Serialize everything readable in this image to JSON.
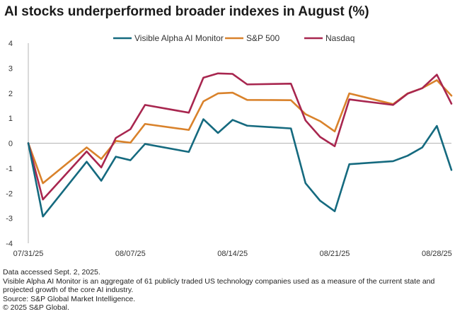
{
  "chart_data": {
    "type": "line",
    "title": "AI stocks underperformed broader indexes in August (%)",
    "xlabel": "",
    "ylabel": "",
    "ylim": [
      -4,
      4
    ],
    "yticks": [
      4,
      3,
      2,
      1,
      0,
      -1,
      -2,
      -3,
      -4
    ],
    "xticks": [
      {
        "label": "07/31/25",
        "x": 0
      },
      {
        "label": "08/07/25",
        "x": 7
      },
      {
        "label": "08/14/25",
        "x": 14
      },
      {
        "label": "08/21/25",
        "x": 21
      },
      {
        "label": "08/28/25",
        "x": 28
      }
    ],
    "x": [
      0,
      1,
      4,
      5,
      6,
      7,
      8,
      11,
      12,
      13,
      14,
      15,
      18,
      19,
      20,
      21,
      22,
      25,
      26,
      27,
      28,
      29
    ],
    "series": [
      {
        "name": "Visible Alpha AI Monitor",
        "color": "#156a7f",
        "values": [
          0,
          -2.93,
          -0.74,
          -1.5,
          -0.54,
          -0.68,
          -0.03,
          -0.35,
          0.96,
          0.41,
          0.93,
          0.7,
          0.59,
          -1.6,
          -2.3,
          -2.72,
          -0.84,
          -0.72,
          -0.5,
          -0.17,
          0.69,
          -1.07
        ]
      },
      {
        "name": "S&P 500",
        "color": "#d9822b",
        "values": [
          0,
          -1.6,
          -0.17,
          -0.63,
          0.09,
          0.02,
          0.77,
          0.53,
          1.67,
          1.99,
          2.02,
          1.73,
          1.72,
          1.16,
          0.88,
          0.47,
          1.99,
          1.56,
          1.99,
          2.2,
          2.52,
          1.9
        ]
      },
      {
        "name": "Nasdaq",
        "color": "#a8264f",
        "values": [
          0,
          -2.25,
          -0.33,
          -0.97,
          0.21,
          0.56,
          1.53,
          1.22,
          2.62,
          2.79,
          2.77,
          2.35,
          2.38,
          0.91,
          0.25,
          -0.12,
          1.75,
          1.53,
          1.98,
          2.2,
          2.74,
          1.58
        ]
      }
    ]
  },
  "footnotes": {
    "accessed": "Data accessed Sept. 2, 2025.",
    "description": "Visible Alpha AI Monitor is an aggregate of 61 publicly traded US technology companies used as a measure of the current state and projected growth of the core AI industry.",
    "source": "Source: S&P Global Market Intelligence.",
    "copyright": "© 2025 S&P Global."
  }
}
